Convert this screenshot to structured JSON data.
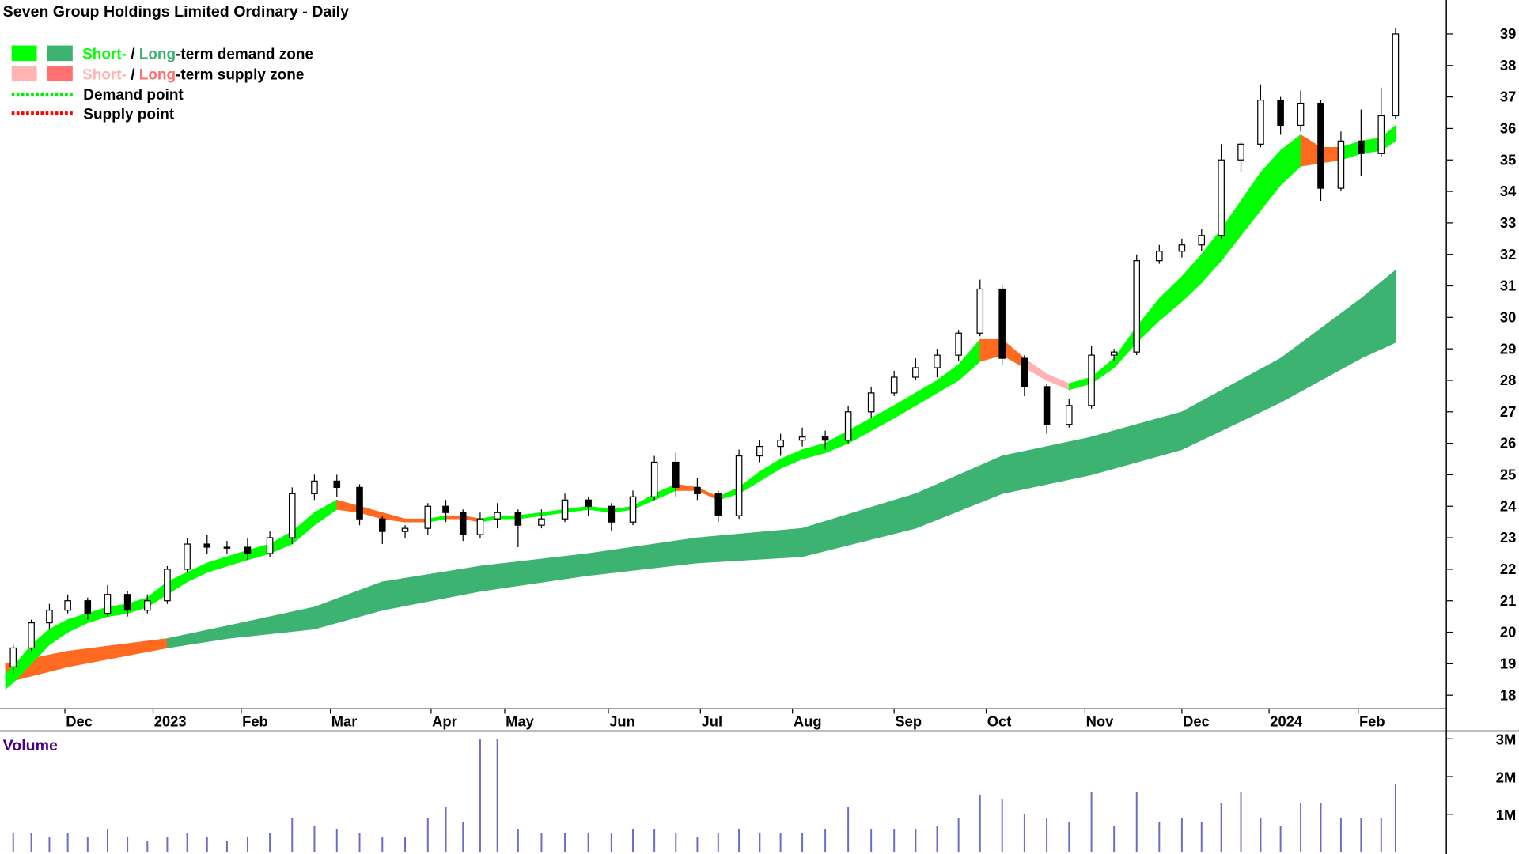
{
  "title": "Seven Group Holdings Limited Ordinary - Daily",
  "legend": {
    "demand_zone": {
      "short": "Short-",
      "sep": " / ",
      "long": "Long",
      "rest": "-term demand zone"
    },
    "supply_zone": {
      "short": "Short-",
      "sep": " / ",
      "long": "Long",
      "rest": "-term supply zone"
    },
    "demand_point": "Demand point",
    "supply_point": "Supply point"
  },
  "colors": {
    "short_demand": "#00ff00",
    "long_demand": "#3cb371",
    "short_supply": "#ffb3b3",
    "long_supply": "#ff7070",
    "transition": "#ff6a20",
    "demand_point": "#00ee00",
    "supply_point": "#ff0000",
    "volume": "#6b6bc8",
    "volume_label": "#4b0082"
  },
  "chart_data": [
    {
      "type": "candlestick",
      "title": "Seven Group Holdings Limited Ordinary - Daily",
      "ylim": [
        17.5,
        39.5
      ],
      "yticks": [
        18,
        19,
        20,
        21,
        22,
        23,
        24,
        25,
        26,
        27,
        28,
        29,
        30,
        31,
        32,
        33,
        34,
        35,
        36,
        37,
        38,
        39
      ],
      "xticks": [
        {
          "label": "Dec",
          "date": "2022-12-01"
        },
        {
          "label": "2023",
          "date": "2023-01-01"
        },
        {
          "label": "Feb",
          "date": "2023-02-01"
        },
        {
          "label": "Mar",
          "date": "2023-03-01"
        },
        {
          "label": "Apr",
          "date": "2023-04-01"
        },
        {
          "label": "May",
          "date": "2023-05-01"
        },
        {
          "label": "Jun",
          "date": "2023-06-01"
        },
        {
          "label": "Jul",
          "date": "2023-07-01"
        },
        {
          "label": "Aug",
          "date": "2023-08-01"
        },
        {
          "label": "Sep",
          "date": "2023-09-01"
        },
        {
          "label": "Oct",
          "date": "2023-10-01"
        },
        {
          "label": "Nov",
          "date": "2023-11-01"
        },
        {
          "label": "Dec",
          "date": "2023-12-01"
        },
        {
          "label": "2024",
          "date": "2024-01-01"
        },
        {
          "label": "Feb",
          "date": "2024-02-01"
        }
      ],
      "ohlc_columns": [
        "date",
        "open",
        "high",
        "low",
        "close"
      ],
      "ohlc": [
        [
          "2022-11-11",
          18.9,
          19.6,
          18.7,
          19.5
        ],
        [
          "2022-11-18",
          19.5,
          20.4,
          19.4,
          20.3
        ],
        [
          "2022-11-25",
          20.3,
          20.9,
          20.1,
          20.7
        ],
        [
          "2022-12-02",
          20.7,
          21.2,
          20.6,
          21.0
        ],
        [
          "2022-12-09",
          21.0,
          21.1,
          20.4,
          20.6
        ],
        [
          "2022-12-16",
          20.6,
          21.5,
          20.5,
          21.2
        ],
        [
          "2022-12-23",
          21.2,
          21.3,
          20.5,
          20.7
        ],
        [
          "2022-12-30",
          20.7,
          21.2,
          20.6,
          21.0
        ],
        [
          "2023-01-06",
          21.0,
          22.1,
          20.9,
          22.0
        ],
        [
          "2023-01-13",
          22.0,
          23.0,
          21.9,
          22.8
        ],
        [
          "2023-01-20",
          22.8,
          23.1,
          22.5,
          22.7
        ],
        [
          "2023-01-27",
          22.7,
          22.9,
          22.5,
          22.7
        ],
        [
          "2023-02-03",
          22.7,
          23.0,
          22.3,
          22.5
        ],
        [
          "2023-02-10",
          22.5,
          23.2,
          22.4,
          23.0
        ],
        [
          "2023-02-17",
          23.0,
          24.6,
          22.8,
          24.4
        ],
        [
          "2023-02-24",
          24.4,
          25.0,
          24.2,
          24.8
        ],
        [
          "2023-03-03",
          24.8,
          25.0,
          24.3,
          24.6
        ],
        [
          "2023-03-10",
          24.6,
          24.7,
          23.4,
          23.6
        ],
        [
          "2023-03-17",
          23.6,
          23.7,
          22.8,
          23.2
        ],
        [
          "2023-03-24",
          23.2,
          23.4,
          23.0,
          23.3
        ],
        [
          "2023-03-31",
          23.3,
          24.1,
          23.1,
          24.0
        ],
        [
          "2023-04-07",
          24.0,
          24.2,
          23.5,
          23.8
        ],
        [
          "2023-04-14",
          23.8,
          23.9,
          22.9,
          23.1
        ],
        [
          "2023-04-21",
          23.1,
          23.8,
          23.0,
          23.6
        ],
        [
          "2023-04-28",
          23.6,
          24.1,
          23.3,
          23.8
        ],
        [
          "2023-05-05",
          23.8,
          23.9,
          22.7,
          23.4
        ],
        [
          "2023-05-12",
          23.4,
          23.9,
          23.3,
          23.6
        ],
        [
          "2023-05-19",
          23.6,
          24.4,
          23.5,
          24.2
        ],
        [
          "2023-05-26",
          24.2,
          24.3,
          23.7,
          24.0
        ],
        [
          "2023-06-02",
          24.0,
          24.1,
          23.2,
          23.5
        ],
        [
          "2023-06-09",
          23.5,
          24.5,
          23.4,
          24.3
        ],
        [
          "2023-06-16",
          24.3,
          25.6,
          24.2,
          25.4
        ],
        [
          "2023-06-23",
          25.4,
          25.7,
          24.3,
          24.6
        ],
        [
          "2023-06-30",
          24.6,
          24.9,
          24.2,
          24.4
        ],
        [
          "2023-07-07",
          24.4,
          24.5,
          23.5,
          23.7
        ],
        [
          "2023-07-14",
          23.7,
          25.8,
          23.6,
          25.6
        ],
        [
          "2023-07-21",
          25.6,
          26.1,
          25.4,
          25.9
        ],
        [
          "2023-07-28",
          25.9,
          26.3,
          25.6,
          26.1
        ],
        [
          "2023-08-04",
          26.1,
          26.5,
          25.9,
          26.2
        ],
        [
          "2023-08-11",
          26.2,
          26.4,
          25.8,
          26.1
        ],
        [
          "2023-08-18",
          26.1,
          27.2,
          26.0,
          27.0
        ],
        [
          "2023-08-25",
          27.0,
          27.8,
          26.8,
          27.6
        ],
        [
          "2023-09-01",
          27.6,
          28.3,
          27.5,
          28.1
        ],
        [
          "2023-09-08",
          28.1,
          28.7,
          28.0,
          28.4
        ],
        [
          "2023-09-15",
          28.4,
          29.0,
          28.1,
          28.8
        ],
        [
          "2023-09-22",
          28.8,
          29.6,
          28.6,
          29.5
        ],
        [
          "2023-09-29",
          29.5,
          31.2,
          29.4,
          30.9
        ],
        [
          "2023-10-06",
          30.9,
          31.0,
          28.5,
          28.7
        ],
        [
          "2023-10-13",
          28.7,
          28.8,
          27.5,
          27.8
        ],
        [
          "2023-10-20",
          27.8,
          27.9,
          26.3,
          26.6
        ],
        [
          "2023-10-27",
          26.6,
          27.4,
          26.5,
          27.2
        ],
        [
          "2023-11-03",
          27.2,
          29.1,
          27.1,
          28.8
        ],
        [
          "2023-11-10",
          28.8,
          29.0,
          28.6,
          28.9
        ],
        [
          "2023-11-17",
          28.9,
          32.0,
          28.8,
          31.8
        ],
        [
          "2023-11-24",
          31.8,
          32.3,
          31.7,
          32.1
        ],
        [
          "2023-12-01",
          32.1,
          32.5,
          31.9,
          32.3
        ],
        [
          "2023-12-08",
          32.3,
          32.8,
          32.1,
          32.6
        ],
        [
          "2023-12-15",
          32.6,
          35.5,
          32.5,
          35.0
        ],
        [
          "2023-12-22",
          35.0,
          35.6,
          34.6,
          35.5
        ],
        [
          "2023-12-29",
          35.5,
          37.4,
          35.4,
          36.9
        ],
        [
          "2024-01-05",
          36.9,
          37.0,
          35.8,
          36.1
        ],
        [
          "2024-01-12",
          36.1,
          37.2,
          35.9,
          36.8
        ],
        [
          "2024-01-19",
          36.8,
          36.9,
          33.7,
          34.1
        ],
        [
          "2024-01-26",
          34.1,
          35.9,
          34.0,
          35.6
        ],
        [
          "2024-02-02",
          35.6,
          36.6,
          34.5,
          35.2
        ],
        [
          "2024-02-09",
          35.2,
          37.3,
          35.1,
          36.4
        ],
        [
          "2024-02-14",
          36.4,
          39.2,
          36.3,
          39.0
        ]
      ],
      "short_term_zone_columns": [
        "date",
        "lower",
        "upper",
        "state"
      ],
      "short_term_zone": [
        [
          "2022-11-08",
          18.2,
          18.7,
          "demand"
        ],
        [
          "2022-11-11",
          18.4,
          18.9,
          "demand"
        ],
        [
          "2022-11-18",
          19.0,
          19.6,
          "demand"
        ],
        [
          "2022-11-25",
          19.6,
          20.1,
          "demand"
        ],
        [
          "2022-12-02",
          20.0,
          20.4,
          "demand"
        ],
        [
          "2022-12-09",
          20.3,
          20.6,
          "demand"
        ],
        [
          "2022-12-16",
          20.5,
          20.8,
          "demand"
        ],
        [
          "2022-12-23",
          20.6,
          20.9,
          "demand"
        ],
        [
          "2022-12-30",
          20.8,
          21.1,
          "demand"
        ],
        [
          "2023-01-06",
          21.2,
          21.6,
          "demand"
        ],
        [
          "2023-01-13",
          21.6,
          21.9,
          "demand"
        ],
        [
          "2023-01-20",
          21.9,
          22.2,
          "demand"
        ],
        [
          "2023-01-27",
          22.1,
          22.4,
          "demand"
        ],
        [
          "2023-02-03",
          22.3,
          22.6,
          "demand"
        ],
        [
          "2023-02-10",
          22.5,
          22.8,
          "demand"
        ],
        [
          "2023-02-17",
          22.8,
          23.2,
          "demand"
        ],
        [
          "2023-02-24",
          23.4,
          23.8,
          "demand"
        ],
        [
          "2023-03-03",
          23.9,
          24.2,
          "demand"
        ],
        [
          "2023-03-10",
          23.8,
          24.0,
          "transition"
        ],
        [
          "2023-03-17",
          23.6,
          23.8,
          "transition"
        ],
        [
          "2023-03-24",
          23.5,
          23.6,
          "transition"
        ],
        [
          "2023-03-31",
          23.5,
          23.6,
          "transition"
        ],
        [
          "2023-04-07",
          23.6,
          23.7,
          "demand"
        ],
        [
          "2023-04-14",
          23.6,
          23.7,
          "transition"
        ],
        [
          "2023-04-21",
          23.5,
          23.6,
          "transition"
        ],
        [
          "2023-04-28",
          23.6,
          23.7,
          "demand"
        ],
        [
          "2023-05-05",
          23.6,
          23.7,
          "demand"
        ],
        [
          "2023-05-12",
          23.7,
          23.8,
          "demand"
        ],
        [
          "2023-05-19",
          23.8,
          23.9,
          "demand"
        ],
        [
          "2023-05-26",
          23.9,
          24.0,
          "demand"
        ],
        [
          "2023-06-02",
          23.8,
          23.9,
          "demand"
        ],
        [
          "2023-06-09",
          23.9,
          24.0,
          "demand"
        ],
        [
          "2023-06-16",
          24.2,
          24.4,
          "demand"
        ],
        [
          "2023-06-23",
          24.5,
          24.7,
          "demand"
        ],
        [
          "2023-06-30",
          24.5,
          24.6,
          "transition"
        ],
        [
          "2023-07-07",
          24.2,
          24.3,
          "transition"
        ],
        [
          "2023-07-14",
          24.4,
          24.6,
          "demand"
        ],
        [
          "2023-07-21",
          24.8,
          25.1,
          "demand"
        ],
        [
          "2023-07-28",
          25.2,
          25.5,
          "demand"
        ],
        [
          "2023-08-04",
          25.5,
          25.8,
          "demand"
        ],
        [
          "2023-08-11",
          25.7,
          26.0,
          "demand"
        ],
        [
          "2023-08-18",
          26.0,
          26.4,
          "demand"
        ],
        [
          "2023-08-25",
          26.4,
          26.8,
          "demand"
        ],
        [
          "2023-09-01",
          26.8,
          27.2,
          "demand"
        ],
        [
          "2023-09-08",
          27.2,
          27.6,
          "demand"
        ],
        [
          "2023-09-15",
          27.6,
          28.0,
          "demand"
        ],
        [
          "2023-09-22",
          28.0,
          28.5,
          "demand"
        ],
        [
          "2023-09-29",
          28.6,
          29.3,
          "demand"
        ],
        [
          "2023-10-06",
          28.8,
          29.3,
          "transition"
        ],
        [
          "2023-10-13",
          28.4,
          28.7,
          "transition"
        ],
        [
          "2023-10-20",
          28.0,
          28.2,
          "supply"
        ],
        [
          "2023-10-27",
          27.7,
          27.9,
          "supply"
        ],
        [
          "2023-11-03",
          27.9,
          28.1,
          "demand"
        ],
        [
          "2023-11-10",
          28.4,
          28.7,
          "demand"
        ],
        [
          "2023-11-17",
          29.2,
          29.7,
          "demand"
        ],
        [
          "2023-11-24",
          29.9,
          30.6,
          "demand"
        ],
        [
          "2023-12-01",
          30.5,
          31.3,
          "demand"
        ],
        [
          "2023-12-08",
          31.1,
          32.0,
          "demand"
        ],
        [
          "2023-12-15",
          31.8,
          32.8,
          "demand"
        ],
        [
          "2023-12-22",
          32.6,
          33.7,
          "demand"
        ],
        [
          "2023-12-29",
          33.4,
          34.6,
          "demand"
        ],
        [
          "2024-01-05",
          34.2,
          35.3,
          "demand"
        ],
        [
          "2024-01-12",
          34.8,
          35.8,
          "demand"
        ],
        [
          "2024-01-19",
          34.9,
          35.4,
          "transition"
        ],
        [
          "2024-01-26",
          35.0,
          35.4,
          "transition"
        ],
        [
          "2024-02-02",
          35.2,
          35.6,
          "demand"
        ],
        [
          "2024-02-09",
          35.3,
          35.7,
          "demand"
        ],
        [
          "2024-02-14",
          35.6,
          36.1,
          "demand"
        ]
      ],
      "long_term_zone_columns": [
        "date",
        "lower",
        "upper",
        "state"
      ],
      "long_term_zone": [
        [
          "2022-11-08",
          18.4,
          19.0,
          "transition"
        ],
        [
          "2022-12-02",
          18.9,
          19.4,
          "transition"
        ],
        [
          "2023-01-06",
          19.5,
          19.8,
          "transition"
        ],
        [
          "2023-01-27",
          19.8,
          20.2,
          "demand"
        ],
        [
          "2023-02-24",
          20.1,
          20.8,
          "demand"
        ],
        [
          "2023-03-17",
          20.7,
          21.6,
          "demand"
        ],
        [
          "2023-04-21",
          21.3,
          22.1,
          "demand"
        ],
        [
          "2023-05-26",
          21.8,
          22.5,
          "demand"
        ],
        [
          "2023-06-30",
          22.2,
          23.0,
          "demand"
        ],
        [
          "2023-08-04",
          22.4,
          23.3,
          "demand"
        ],
        [
          "2023-09-08",
          23.3,
          24.4,
          "demand"
        ],
        [
          "2023-10-06",
          24.4,
          25.6,
          "demand"
        ],
        [
          "2023-11-03",
          25.0,
          26.2,
          "demand"
        ],
        [
          "2023-12-01",
          25.8,
          27.0,
          "demand"
        ],
        [
          "2024-01-05",
          27.3,
          28.7,
          "demand"
        ],
        [
          "2024-02-02",
          28.7,
          30.6,
          "demand"
        ],
        [
          "2024-02-14",
          29.2,
          31.5,
          "demand"
        ]
      ]
    },
    {
      "type": "bar",
      "title": "Volume",
      "ylim": [
        0,
        3.1
      ],
      "yticks": [
        {
          "value": 1,
          "label": "1M"
        },
        {
          "value": 2,
          "label": "2M"
        },
        {
          "value": 3,
          "label": "3M"
        }
      ],
      "unit": "M",
      "volume": [
        0.5,
        0.5,
        0.4,
        0.5,
        0.4,
        0.6,
        0.4,
        0.3,
        0.4,
        0.5,
        0.4,
        0.3,
        0.4,
        0.5,
        0.9,
        0.7,
        0.6,
        0.5,
        0.4,
        0.4,
        0.9,
        1.2,
        0.8,
        3.0,
        3.0,
        0.6,
        0.5,
        0.5,
        0.5,
        0.5,
        0.6,
        0.6,
        0.5,
        0.4,
        0.5,
        0.6,
        0.5,
        0.5,
        0.5,
        0.6,
        1.2,
        0.6,
        0.6,
        0.6,
        0.7,
        0.9,
        1.5,
        1.4,
        1.0,
        0.9,
        0.8,
        1.6,
        0.7,
        1.6,
        0.8,
        0.9,
        0.8,
        1.3,
        1.6,
        0.9,
        0.7,
        1.3,
        1.3,
        0.9,
        0.9,
        0.9,
        1.8
      ]
    }
  ]
}
